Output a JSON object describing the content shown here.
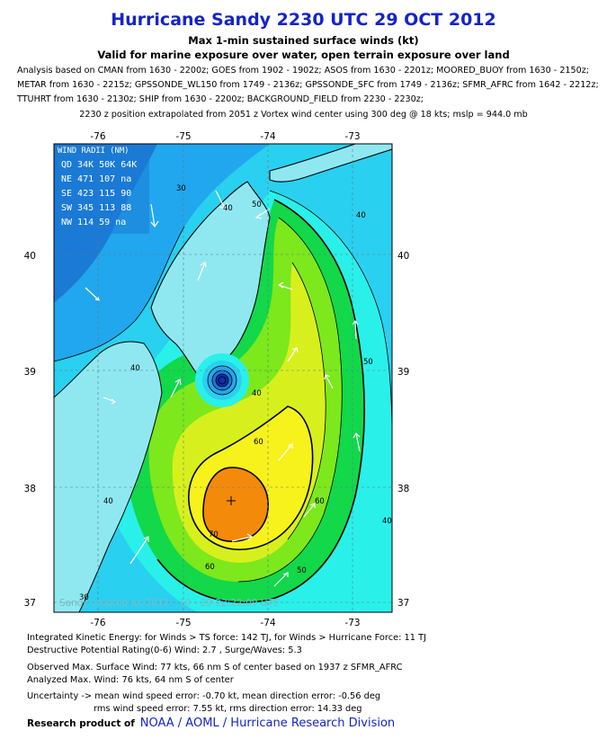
{
  "header": {
    "title": "Hurricane Sandy 2230 UTC 29 OCT 2012",
    "subtitle1": "Max 1-min sustained surface winds (kt)",
    "subtitle2": "Valid for marine exposure over water, open terrain exposure over land",
    "analysis_lines": [
      "Analysis based on CMAN from 1630 - 2200z; GOES from 1902 - 1902z; ASOS from 1630 - 2201z; MOORED_BUOY from 1630 - 2150z;",
      "METAR from 1630 - 2215z; GPSSONDE_WL150 from 1749 - 2136z; GPSSONDE_SFC from 1749 - 2136z; SFMR_AFRC from 1642 - 2212z;",
      "TTUHRT from 1630 - 2130z; SHIP from 1630 - 2200z; BACKGROUND_FIELD from 2230 - 2230z;"
    ],
    "position_line": "2230 z position extrapolated from 2051 z Vortex wind center using 300 deg @ 18 kts;  mslp = 944.0 mb"
  },
  "map": {
    "lon_ticks": [
      "-76",
      "-75",
      "-74",
      "-73"
    ],
    "lat_ticks": [
      "40",
      "39",
      "38",
      "37"
    ],
    "wind_radii": {
      "title": "WIND RADII (NM)",
      "header": "QD 34K 50K 64K",
      "rows": [
        "NE 471 107  na",
        "SE 423 115  90",
        "SW 345 113  88",
        "NW 114  59  na"
      ]
    },
    "contour_labels": [
      "30",
      "40",
      "40",
      "40",
      "40",
      "40",
      "50",
      "50",
      "50",
      "60",
      "60",
      "60",
      "70",
      "40",
      "30"
    ],
    "watermark": "Sandy    created on  2012 - 10 - 29 22:22:09 UTC",
    "colors": {
      "c20": "#1b7ad6",
      "c30": "#21a7ee",
      "c40": "#2ad0ef",
      "c45": "#2af0ea",
      "c50": "#12d84a",
      "c55": "#7de81c",
      "c60": "#d7f01d",
      "c70": "#f7f21b",
      "c80": "#f48a0a",
      "land": "#8fe8f0"
    }
  },
  "footer": {
    "kinetic": "Integrated Kinetic Energy: for Winds > TS force: 142 TJ, for Winds > Hurricane Force: 11 TJ",
    "destructive": "Destructive Potential Rating(0-6)  Wind: 2.7 , Surge/Waves: 5.3",
    "observed": "Observed Max. Surface Wind: 77 kts, 66 nm S of center based on 1937 z SFMR_AFRC",
    "analyzed": "Analyzed Max. Wind: 76 kts, 64 nm  S of center",
    "uncertainty1": "Uncertainty -> mean wind speed error:  -0.70 kt, mean direction error:  -0.56 deg",
    "uncertainty2": "rms wind speed error: 7.55 kt, rms direction error: 14.33 deg",
    "research_label": "Research product of",
    "org": "NOAA  /  AOML  /  Hurricane Research Division"
  }
}
